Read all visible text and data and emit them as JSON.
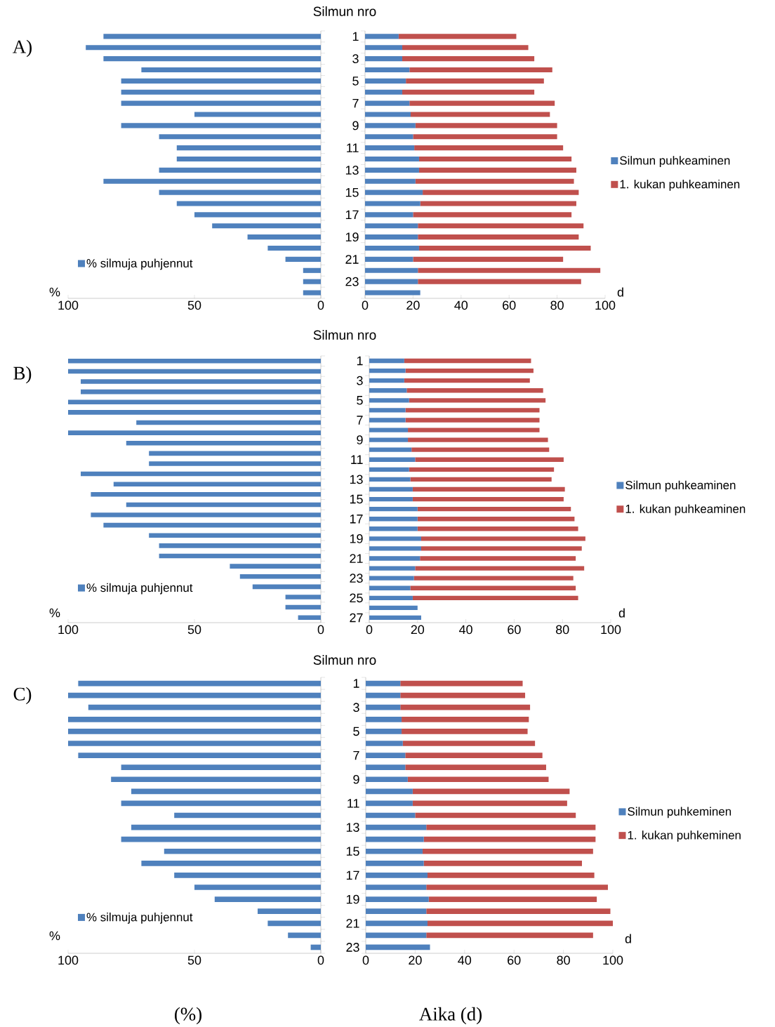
{
  "chart_data": [
    {
      "type": "bar",
      "orientation": "horizontal",
      "title": "A)",
      "xlabel": "%",
      "categories": [
        null,
        null,
        null,
        null,
        null,
        null,
        null,
        null,
        null,
        null,
        null,
        null,
        null,
        null,
        null,
        null,
        null,
        null,
        null,
        null,
        null,
        null,
        null,
        null
      ],
      "xlim": [
        100,
        0
      ],
      "xticks": [
        100,
        50,
        0
      ],
      "legend": "bottom left",
      "series": [
        {
          "name": "% silmuja puhjennut",
          "color": "#4f81bd",
          "values": [
            86,
            93,
            86,
            71,
            79,
            79,
            79,
            50,
            79,
            64,
            57,
            57,
            64,
            86,
            64,
            57,
            50,
            43,
            29,
            21,
            14,
            7,
            7,
            7
          ]
        }
      ]
    },
    {
      "type": "bar",
      "orientation": "horizontal",
      "stacked": true,
      "title": "Silmun nro",
      "xlabel": "d",
      "categories": [
        "1",
        null,
        "3",
        null,
        "5",
        null,
        "7",
        null,
        "9",
        null,
        "11",
        null,
        "13",
        null,
        "15",
        null,
        "17",
        null,
        "19",
        null,
        "21",
        null,
        "23",
        null
      ],
      "xlim": [
        0,
        100
      ],
      "xticks": [
        0,
        20,
        40,
        60,
        80,
        100
      ],
      "legend": "right",
      "series": [
        {
          "name": "Silmun puhkeaminen",
          "color": "#4f81bd",
          "values": [
            14,
            15.5,
            15.5,
            18.5,
            17,
            15.5,
            18.5,
            19,
            21,
            20,
            20.5,
            22.5,
            22.5,
            21,
            24,
            23,
            20,
            22,
            22,
            22.5,
            20,
            22,
            22,
            23
          ]
        },
        {
          "name": "1. kukan puhkeaminen",
          "color": "#c0504d",
          "values": [
            49,
            52.5,
            55,
            59.5,
            57.5,
            55,
            60.5,
            58,
            59,
            60,
            62,
            63.5,
            65.5,
            66,
            65,
            65,
            66,
            69,
            67,
            71.5,
            62.5,
            76,
            68,
            null
          ]
        }
      ]
    },
    {
      "type": "bar",
      "orientation": "horizontal",
      "title": "B)",
      "xlabel": "%",
      "categories": [
        null,
        null,
        null,
        null,
        null,
        null,
        null,
        null,
        null,
        null,
        null,
        null,
        null,
        null,
        null,
        null,
        null,
        null,
        null,
        null,
        null,
        null,
        null,
        null,
        null,
        null
      ],
      "xlim": [
        100,
        0
      ],
      "xticks": [
        100,
        50,
        0
      ],
      "legend": "bottom left",
      "series": [
        {
          "name": "% silmuja puhjennut",
          "color": "#4f81bd",
          "values": [
            100,
            100,
            95,
            95,
            100,
            100,
            73,
            100,
            77,
            68,
            68,
            95,
            82,
            91,
            77,
            91,
            86,
            68,
            64,
            64,
            36,
            32,
            27,
            14,
            14,
            9
          ]
        }
      ]
    },
    {
      "type": "bar",
      "orientation": "horizontal",
      "stacked": true,
      "title": "Silmun nro",
      "xlabel": "d",
      "categories": [
        "1",
        null,
        "3",
        null,
        "5",
        null,
        "7",
        null,
        "9",
        null,
        "11",
        null,
        "13",
        null,
        "15",
        null,
        "17",
        null,
        "19",
        null,
        "21",
        null,
        "23",
        null,
        "25",
        null,
        "27"
      ],
      "xlim": [
        0,
        100
      ],
      "xticks": [
        0,
        20,
        40,
        60,
        80,
        100
      ],
      "legend": "right",
      "series": [
        {
          "name": "Silmun puhkeaminen",
          "color": "#4f81bd",
          "values": [
            14.5,
            15,
            14.5,
            15.5,
            16.5,
            15,
            15,
            16,
            16,
            17.5,
            19,
            16.5,
            17,
            18,
            18,
            20,
            20,
            20,
            21.5,
            21.5,
            21,
            19,
            18.5,
            17,
            18,
            20,
            21.5
          ]
        },
        {
          "name": "1. kukan puhkeaminen",
          "color": "#c0504d",
          "values": [
            52.5,
            53,
            52,
            56.5,
            56.5,
            55.5,
            55.5,
            54.5,
            58,
            57,
            61.5,
            60,
            58.5,
            63,
            62.5,
            63.5,
            65,
            66.5,
            68,
            66.5,
            64.5,
            70,
            66,
            68.5,
            68.5,
            null,
            null
          ]
        }
      ]
    },
    {
      "type": "bar",
      "orientation": "horizontal",
      "title": "C)",
      "xlabel": "%",
      "annotations": [
        "(%)"
      ],
      "categories": [
        null,
        null,
        null,
        null,
        null,
        null,
        null,
        null,
        null,
        null,
        null,
        null,
        null,
        null,
        null,
        null,
        null,
        null,
        null,
        null,
        null,
        null,
        null
      ],
      "xlim": [
        100,
        0
      ],
      "xticks": [
        100,
        50,
        0
      ],
      "legend": "bottom left",
      "series": [
        {
          "name": "% silmuja puhjennut",
          "color": "#4f81bd",
          "values": [
            96,
            100,
            92,
            100,
            100,
            100,
            96,
            79,
            83,
            75,
            79,
            58,
            75,
            79,
            62,
            71,
            58,
            50,
            42,
            25,
            21,
            13,
            4
          ]
        }
      ]
    },
    {
      "type": "bar",
      "orientation": "horizontal",
      "stacked": true,
      "title": "Silmun nro",
      "xlabel": "d",
      "annotations": [
        "Aika (d)"
      ],
      "categories": [
        "1",
        null,
        "3",
        null,
        "5",
        null,
        "7",
        null,
        "9",
        null,
        "11",
        null,
        "13",
        null,
        "15",
        null,
        "17",
        null,
        "19",
        null,
        "21",
        null,
        "23"
      ],
      "xlim": [
        0,
        100
      ],
      "xticks": [
        0,
        20,
        40,
        60,
        80,
        100
      ],
      "legend": "right",
      "series": [
        {
          "name": "Silmun puhkeminen",
          "color": "#4f81bd",
          "values": [
            14,
            14,
            14,
            14.5,
            14.5,
            15,
            16,
            16,
            17,
            19,
            19,
            20,
            24.5,
            23.5,
            23,
            23.5,
            25,
            24.5,
            25.5,
            24.5,
            25,
            24.5,
            26
          ]
        },
        {
          "name": "1. kukan puhkeminen",
          "color": "#c0504d",
          "values": [
            49.5,
            50.5,
            52.5,
            51.5,
            51,
            53.5,
            55.5,
            57,
            57,
            63.5,
            62.5,
            65,
            68.5,
            69.5,
            69,
            64,
            67.5,
            73.5,
            68,
            74.5,
            75,
            67.5,
            null
          ]
        }
      ]
    }
  ]
}
